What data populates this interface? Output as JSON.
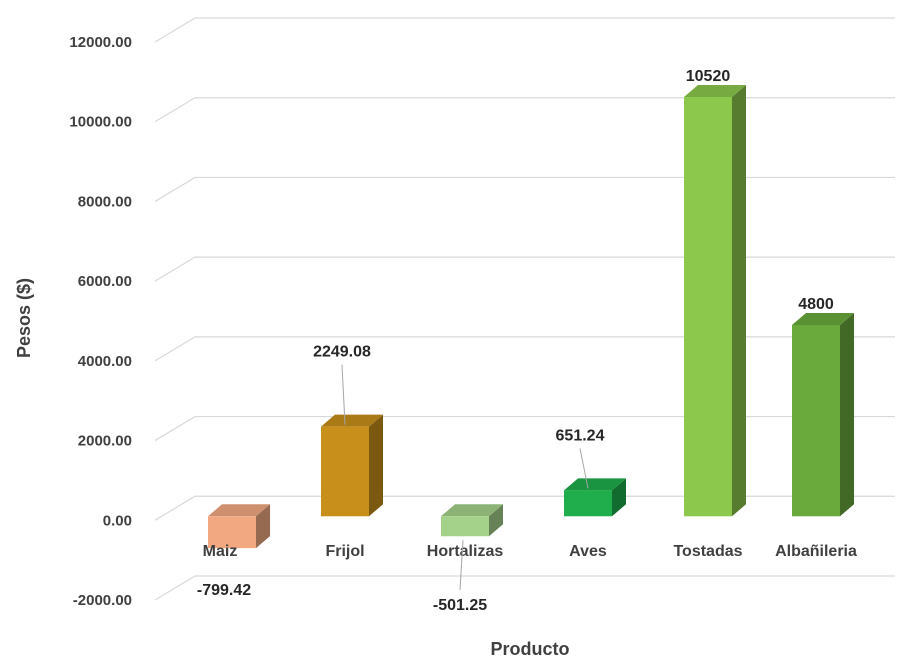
{
  "chart_data": {
    "type": "bar",
    "style": "3d-column",
    "categories": [
      "Maiz",
      "Frijol",
      "Hortalizas",
      "Aves",
      "Tostadas",
      "Albañileria"
    ],
    "values": [
      -799.42,
      2249.08,
      -501.25,
      651.24,
      10520,
      4800
    ],
    "data_labels": [
      "-799.42",
      "2249.08",
      "-501.25",
      "651.24",
      "10520",
      "4800"
    ],
    "colors": [
      "#f2a982",
      "#c8901a",
      "#a5d28a",
      "#1fae4b",
      "#8cc84b",
      "#6aaa3c"
    ],
    "xlabel": "Producto",
    "ylabel": "Pesos ($)",
    "ylim": [
      -2000,
      12000
    ],
    "yticks": [
      "-2000.00",
      "0.00",
      "2000.00",
      "4000.00",
      "6000.00",
      "8000.00",
      "10000.00",
      "12000.00"
    ],
    "grid": true,
    "legend": "none"
  }
}
